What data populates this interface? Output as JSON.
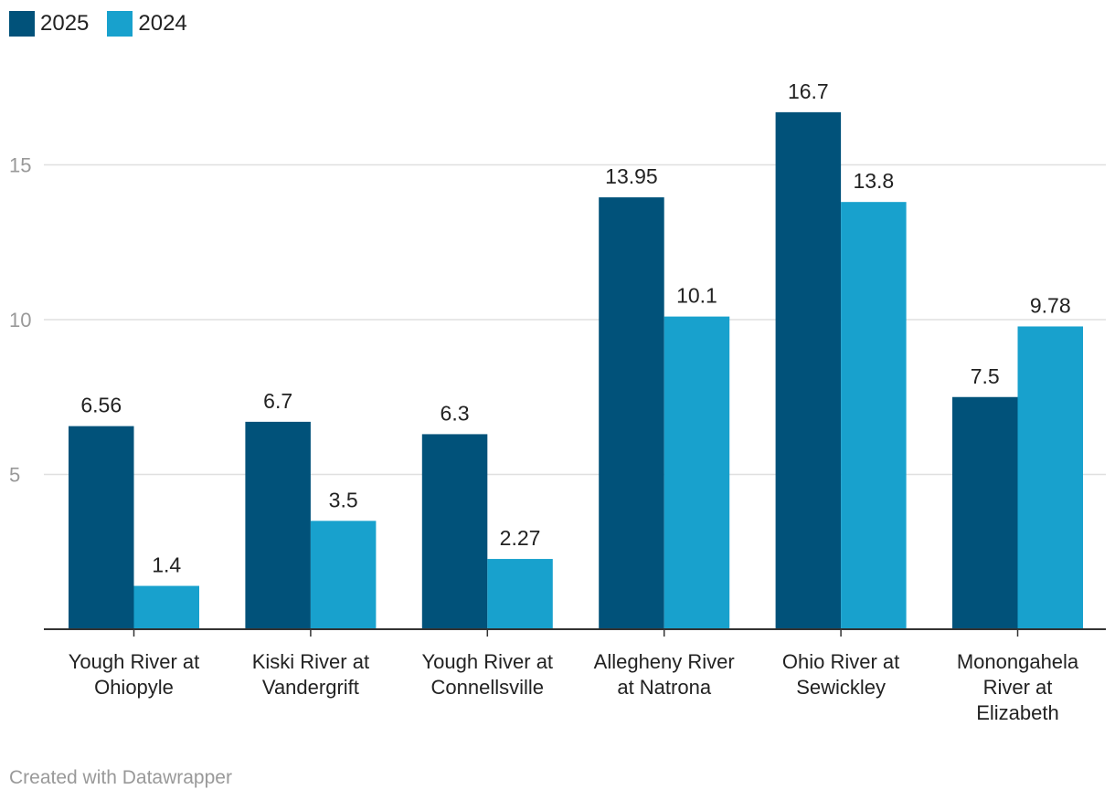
{
  "chart_data": {
    "type": "bar",
    "categories": [
      "Yough River at Ohiopyle",
      "Kiski River at Vandergrift",
      "Yough River at Connellsville",
      "Allegheny River at Natrona",
      "Ohio River at Sewickley",
      "Monongahela River at Elizabeth"
    ],
    "category_lines": [
      [
        "Yough River at",
        "Ohiopyle"
      ],
      [
        "Kiski River at",
        "Vandergrift"
      ],
      [
        "Yough River at",
        "Connellsville"
      ],
      [
        "Allegheny River",
        "at Natrona"
      ],
      [
        "Ohio River at",
        "Sewickley"
      ],
      [
        "Monongahela",
        "River at",
        "Elizabeth"
      ]
    ],
    "series": [
      {
        "name": "2025",
        "color": "#01527a",
        "values": [
          6.56,
          6.7,
          6.3,
          13.95,
          16.7,
          7.5
        ],
        "labels": [
          "6.56",
          "6.7",
          "6.3",
          "13.95",
          "16.7",
          "7.5"
        ]
      },
      {
        "name": "2024",
        "color": "#18a1cd",
        "values": [
          1.4,
          3.5,
          2.27,
          10.1,
          13.8,
          9.78
        ],
        "labels": [
          "1.4",
          "3.5",
          "2.27",
          "10.1",
          "13.8",
          "9.78"
        ]
      }
    ],
    "yticks": [
      5,
      10,
      15
    ],
    "ytick_labels": [
      "5",
      "10",
      "15"
    ],
    "ylim": [
      0,
      17.5
    ],
    "legend_position": "top-left",
    "grid": true
  },
  "footer": {
    "credit": "Created with Datawrapper"
  }
}
